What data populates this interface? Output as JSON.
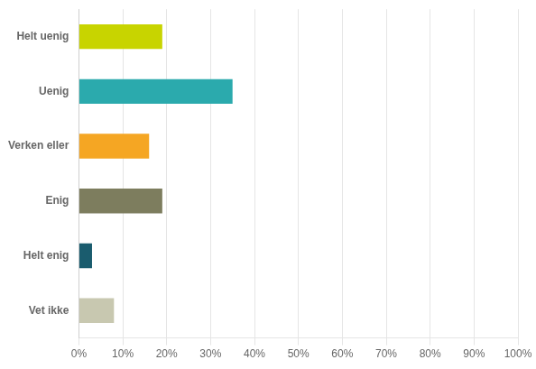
{
  "chart_data": {
    "type": "bar",
    "orientation": "horizontal",
    "categories": [
      "Helt uenig",
      "Uenig",
      "Verken eller",
      "Enig",
      "Helt enig",
      "Vet ikke"
    ],
    "values": [
      19,
      35,
      16,
      19,
      3,
      8
    ],
    "colors": [
      "#c8d400",
      "#2baaad",
      "#f5a623",
      "#7d7d5e",
      "#1a5c6e",
      "#c8c8b0"
    ],
    "xlim": [
      0,
      100
    ],
    "xticks": [
      {
        "value": 0,
        "label": "0%"
      },
      {
        "value": 10,
        "label": "10%"
      },
      {
        "value": 20,
        "label": "20%"
      },
      {
        "value": 30,
        "label": "30%"
      },
      {
        "value": 40,
        "label": "40%"
      },
      {
        "value": 50,
        "label": "50%"
      },
      {
        "value": 60,
        "label": "60%"
      },
      {
        "value": 70,
        "label": "70%"
      },
      {
        "value": 80,
        "label": "80%"
      },
      {
        "value": 90,
        "label": "90%"
      },
      {
        "value": 100,
        "label": "100%"
      }
    ],
    "grid": true
  }
}
